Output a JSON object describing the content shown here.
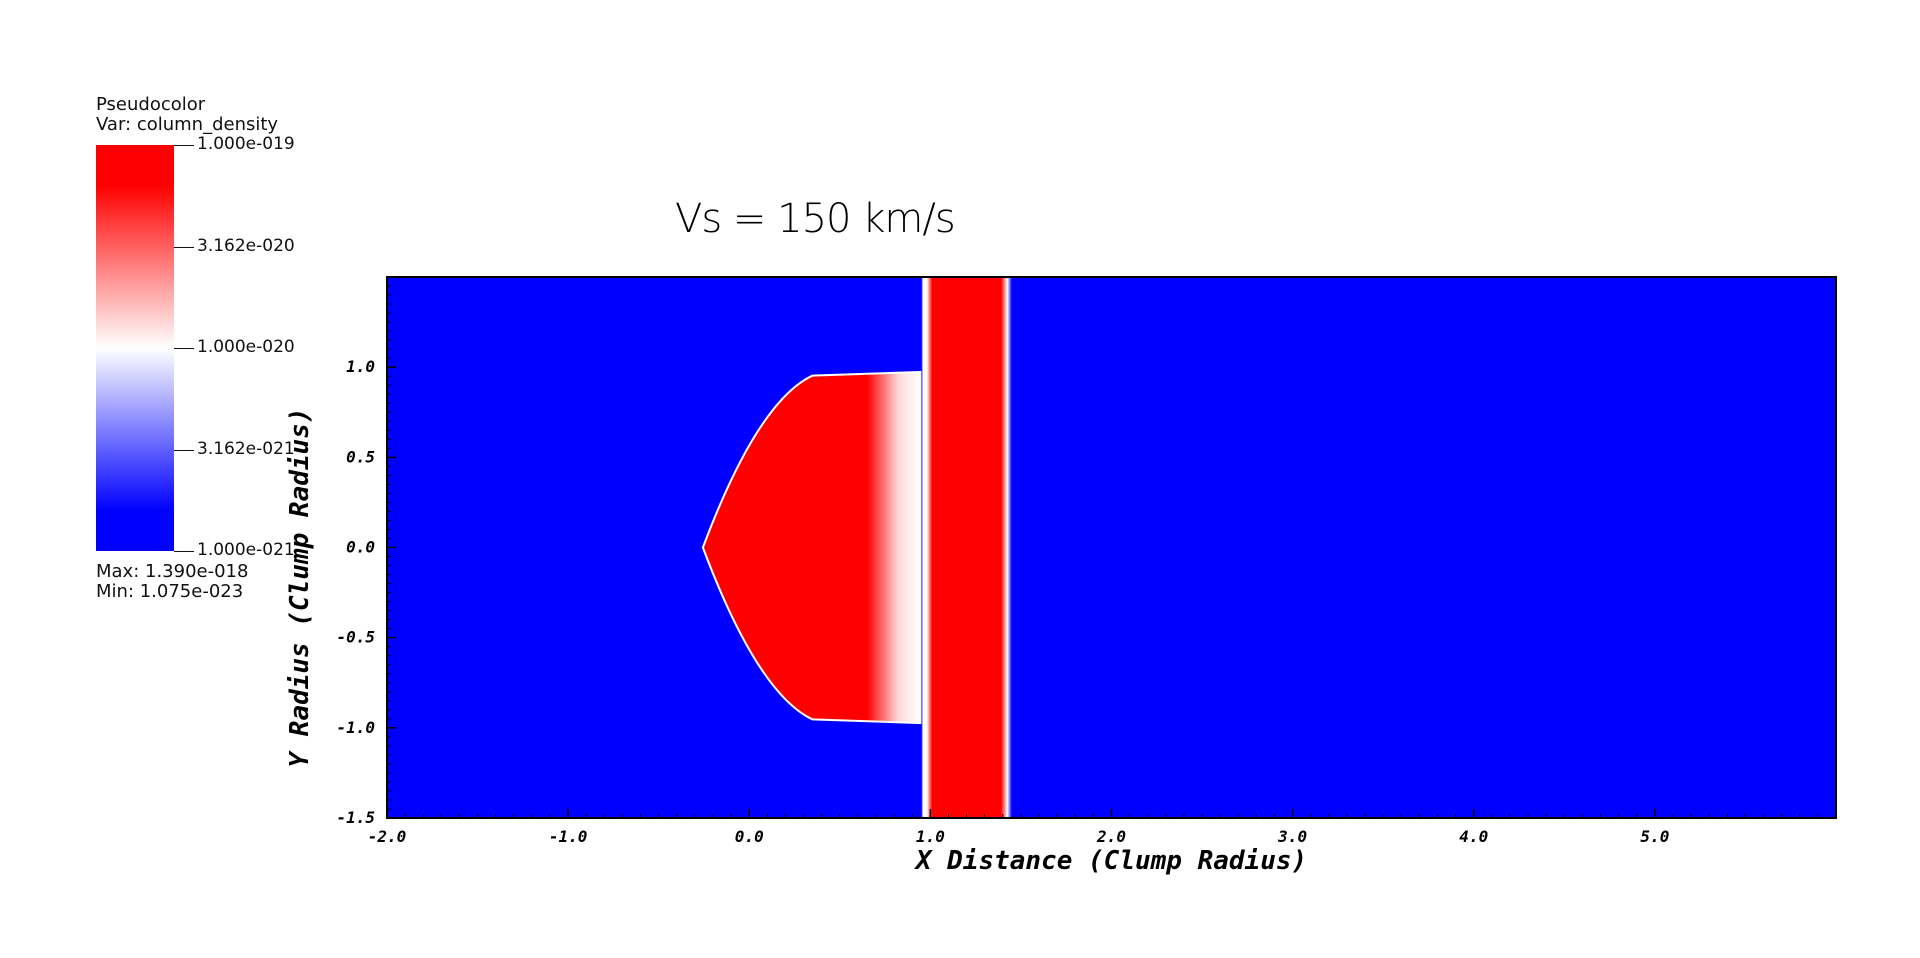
{
  "legend": {
    "line1": "Pseudocolor",
    "line2": "Var: column_density",
    "ticks": [
      "1.000e-019",
      "3.162e-020",
      "1.000e-020",
      "3.162e-021",
      "1.000e-021"
    ],
    "max_label": "Max:  1.390e-018",
    "min_label": "Min:  1.075e-023",
    "colors": {
      "high": "#ff0000",
      "mid": "#ffffff",
      "low": "#0000ff"
    }
  },
  "chart_data": {
    "type": "heatmap",
    "title": "Vs = 150 km/s",
    "xlabel": "X Distance (Clump Radius)",
    "ylabel": "Y Radius (Clump Radius)",
    "xlim": [
      -2.0,
      6.0
    ],
    "ylim": [
      -1.5,
      1.5
    ],
    "xticks": [
      -2.0,
      -1.0,
      0.0,
      1.0,
      2.0,
      3.0,
      4.0,
      5.0
    ],
    "xtick_labels": [
      "-2.0",
      "-1.0",
      "0.0",
      "1.0",
      "2.0",
      "3.0",
      "4.0",
      "5.0"
    ],
    "yticks": [
      -1.5,
      -1.0,
      -0.5,
      0.0,
      0.5,
      1.0
    ],
    "ytick_labels": [
      "-1.5",
      "-1.0",
      "-0.5",
      "0.0",
      "0.5",
      "1.0"
    ],
    "colorscale": "log",
    "color_range": [
      1e-21,
      1e-19
    ],
    "features": {
      "background_value": "low",
      "clump": {
        "left_edge_x": -0.25,
        "right_x": 1.0,
        "half_height": 0.97
      },
      "slab": {
        "x_start": 0.95,
        "x_end": 1.45
      }
    }
  }
}
